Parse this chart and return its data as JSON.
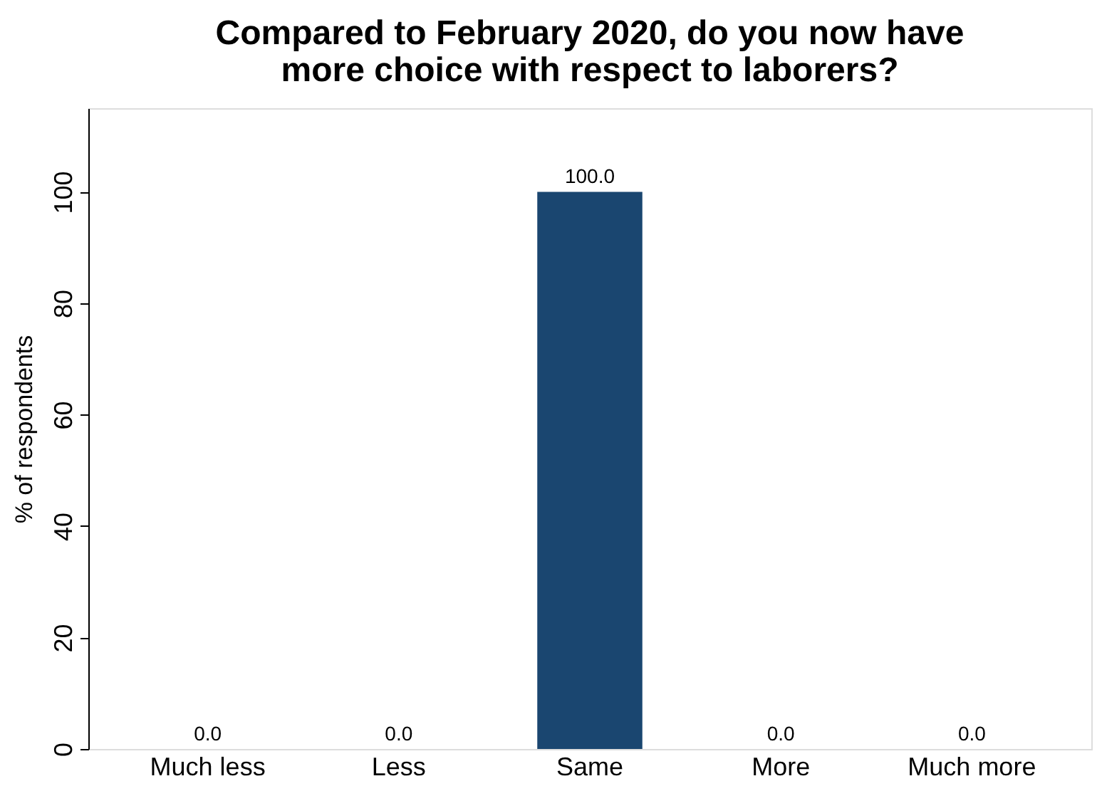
{
  "chart_data": {
    "type": "bar",
    "title": "Compared to February 2020, do you now have\nmore choice with respect to laborers?",
    "ylabel": "% of respondents",
    "categories": [
      "Much less",
      "Less",
      "Same",
      "More",
      "Much more"
    ],
    "values": [
      0.0,
      0.0,
      100.0,
      0.0,
      0.0
    ],
    "color": "#1a4670",
    "ylim": [
      0,
      115
    ],
    "yticks": [
      0,
      20,
      40,
      60,
      80,
      100
    ],
    "value_labels": [
      "0.0",
      "0.0",
      "100.0",
      "0.0",
      "0.0"
    ],
    "grid": false
  }
}
